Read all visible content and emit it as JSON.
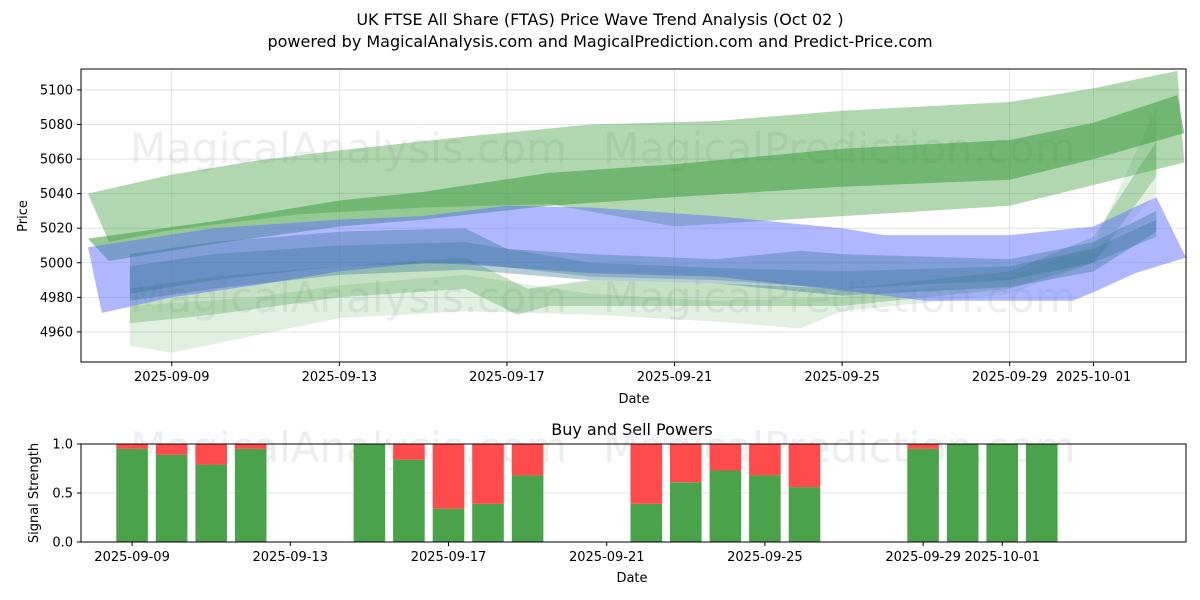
{
  "header": {
    "title": "UK FTSE All Share (FTAS) Price Wave Trend Analysis (Oct 02 )",
    "subtitle": "powered by MagicalAnalysis.com and MagicalPrediction.com and Predict-Price.com"
  },
  "watermarks": [
    "MagicalAnalysis.com",
    "MagicalPrediction.com"
  ],
  "colors": {
    "buy": "#4aa34a",
    "sell": "#ff4b4b",
    "green_band": "#3c9c3c",
    "blue_band": "#6070ff",
    "teal_band": "#2f6f8f",
    "grid": "#dddddd"
  },
  "chart_data": [
    {
      "type": "area",
      "title": "",
      "xlabel": "Date",
      "ylabel": "Price",
      "xlim": [
        "2025-09-06T20:00",
        "2025-10-03T05:00"
      ],
      "ylim": [
        4942.6,
        5112.1
      ],
      "yticks": [
        4960,
        4980,
        5000,
        5020,
        5040,
        5060,
        5080,
        5100
      ],
      "xticks": [
        "2025-09-09",
        "2025-09-13",
        "2025-09-17",
        "2025-09-21",
        "2025-09-25",
        "2025-09-29",
        "2025-10-01"
      ],
      "grid": true,
      "bands": [
        {
          "name": "upper-wave-outer",
          "color": "green",
          "opacity": 0.4,
          "upper": [
            [
              "2025-09-07",
              5040
            ],
            [
              "2025-09-09",
              5051
            ],
            [
              "2025-09-11",
              5059
            ],
            [
              "2025-09-13",
              5065
            ],
            [
              "2025-09-16",
              5073
            ],
            [
              "2025-09-19",
              5080
            ],
            [
              "2025-09-22",
              5082
            ],
            [
              "2025-09-25",
              5088
            ],
            [
              "2025-09-29",
              5093
            ],
            [
              "2025-10-01",
              5101
            ],
            [
              "2025-10-03",
              5111
            ]
          ],
          "lower": [
            [
              "2025-09-07T12:00",
              5012
            ],
            [
              "2025-09-09",
              5019
            ],
            [
              "2025-09-12",
              5028
            ],
            [
              "2025-09-15",
              5032
            ],
            [
              "2025-09-18",
              5034
            ],
            [
              "2025-09-21",
              5021
            ],
            [
              "2025-09-25",
              5027
            ],
            [
              "2025-09-29",
              5033
            ],
            [
              "2025-10-01",
              5045
            ],
            [
              "2025-10-03T04:00",
              5058
            ]
          ]
        },
        {
          "name": "upper-wave-core",
          "color": "green",
          "opacity": 0.55,
          "upper": [
            [
              "2025-09-07",
              5014
            ],
            [
              "2025-09-10",
              5024
            ],
            [
              "2025-09-13",
              5036
            ],
            [
              "2025-09-15",
              5041
            ],
            [
              "2025-09-18",
              5052
            ],
            [
              "2025-09-21",
              5057
            ],
            [
              "2025-09-25",
              5066
            ],
            [
              "2025-09-29",
              5071
            ],
            [
              "2025-10-01",
              5081
            ],
            [
              "2025-10-03",
              5097
            ]
          ],
          "lower": [
            [
              "2025-09-07T12:00",
              5001
            ],
            [
              "2025-09-10",
              5011
            ],
            [
              "2025-09-13",
              5021
            ],
            [
              "2025-09-15",
              5025
            ],
            [
              "2025-09-18",
              5033
            ],
            [
              "2025-09-21",
              5038
            ],
            [
              "2025-09-25",
              5044
            ],
            [
              "2025-09-29",
              5048
            ],
            [
              "2025-10-01",
              5060
            ],
            [
              "2025-10-03T04:00",
              5075
            ]
          ]
        },
        {
          "name": "lower-wave-faint",
          "color": "green",
          "opacity": 0.15,
          "upper": [
            [
              "2025-09-08",
              4975
            ],
            [
              "2025-09-11",
              4980
            ],
            [
              "2025-09-13",
              4987
            ],
            [
              "2025-09-16",
              4993
            ],
            [
              "2025-09-19",
              4982
            ],
            [
              "2025-09-22",
              4978
            ],
            [
              "2025-09-25",
              4980
            ],
            [
              "2025-09-29",
              4992
            ],
            [
              "2025-10-01",
              5010
            ],
            [
              "2025-10-02T12:00",
              5090
            ]
          ],
          "lower": [
            [
              "2025-09-08",
              4952
            ],
            [
              "2025-09-09",
              4948
            ],
            [
              "2025-09-11",
              4958
            ],
            [
              "2025-09-13",
              4968
            ],
            [
              "2025-09-16",
              4972
            ],
            [
              "2025-09-19",
              4970
            ],
            [
              "2025-09-22",
              4966
            ],
            [
              "2025-09-24",
              4962
            ],
            [
              "2025-09-25",
              4972
            ],
            [
              "2025-09-29",
              4982
            ],
            [
              "2025-10-01",
              5000
            ],
            [
              "2025-10-02T12:00",
              5040
            ]
          ]
        },
        {
          "name": "lower-wave-mid",
          "color": "green",
          "opacity": 0.3,
          "upper": [
            [
              "2025-09-08",
              4985
            ],
            [
              "2025-09-10",
              4992
            ],
            [
              "2025-09-13",
              4998
            ],
            [
              "2025-09-16",
              5003
            ],
            [
              "2025-09-17T12:00",
              4985
            ],
            [
              "2025-09-19",
              4990
            ],
            [
              "2025-09-22",
              4988
            ],
            [
              "2025-09-25",
              4985
            ],
            [
              "2025-09-29",
              4995
            ],
            [
              "2025-10-01",
              5015
            ],
            [
              "2025-10-02T12:00",
              5070
            ]
          ],
          "lower": [
            [
              "2025-09-08",
              4965
            ],
            [
              "2025-09-10",
              4970
            ],
            [
              "2025-09-13",
              4980
            ],
            [
              "2025-09-16",
              4985
            ],
            [
              "2025-09-17T06:00",
              4970
            ],
            [
              "2025-09-18",
              4975
            ],
            [
              "2025-09-22",
              4975
            ],
            [
              "2025-09-25",
              4975
            ],
            [
              "2025-09-29",
              4985
            ],
            [
              "2025-10-01",
              5000
            ],
            [
              "2025-10-02T12:00",
              5050
            ]
          ]
        },
        {
          "name": "blue-wave-outer",
          "color": "blue",
          "opacity": 0.5,
          "upper": [
            [
              "2025-09-07",
              5009
            ],
            [
              "2025-09-10",
              5020
            ],
            [
              "2025-09-13",
              5025
            ],
            [
              "2025-09-15",
              5027
            ],
            [
              "2025-09-17",
              5033
            ],
            [
              "2025-09-19",
              5032
            ],
            [
              "2025-09-22",
              5027
            ],
            [
              "2025-09-25",
              5020
            ],
            [
              "2025-09-26",
              5016
            ],
            [
              "2025-09-29",
              5016
            ],
            [
              "2025-10-01",
              5021
            ],
            [
              "2025-10-02T12:00",
              5038
            ],
            [
              "2025-10-03T05:00",
              5003
            ]
          ],
          "lower": [
            [
              "2025-09-07T08:00",
              4971
            ],
            [
              "2025-09-09",
              4980
            ],
            [
              "2025-09-11",
              4987
            ],
            [
              "2025-09-13",
              4995
            ],
            [
              "2025-09-15",
              5000
            ],
            [
              "2025-09-16",
              4999
            ],
            [
              "2025-09-19",
              4994
            ],
            [
              "2025-09-22",
              4992
            ],
            [
              "2025-09-25",
              4984
            ],
            [
              "2025-09-27",
              4978
            ],
            [
              "2025-09-30T12:00",
              4978
            ],
            [
              "2025-10-01",
              4983
            ],
            [
              "2025-10-02",
              4994
            ],
            [
              "2025-10-03T05:00",
              5003
            ]
          ]
        },
        {
          "name": "blue-wave-core",
          "color": "teal",
          "opacity": 0.35,
          "upper": [
            [
              "2025-09-08",
              5005
            ],
            [
              "2025-09-10",
              5012
            ],
            [
              "2025-09-13",
              5018
            ],
            [
              "2025-09-16",
              5020
            ],
            [
              "2025-09-17",
              5008
            ],
            [
              "2025-09-19",
              5005
            ],
            [
              "2025-09-22",
              5002
            ],
            [
              "2025-09-24",
              5007
            ],
            [
              "2025-09-25",
              5005
            ],
            [
              "2025-09-29",
              5002
            ],
            [
              "2025-10-01",
              5012
            ],
            [
              "2025-10-02T12:00",
              5030
            ]
          ],
          "lower": [
            [
              "2025-09-08",
              4978
            ],
            [
              "2025-09-10",
              4985
            ],
            [
              "2025-09-13",
              4993
            ],
            [
              "2025-09-16",
              4996
            ],
            [
              "2025-09-19",
              4990
            ],
            [
              "2025-09-22",
              4988
            ],
            [
              "2025-09-25",
              4981
            ],
            [
              "2025-09-29",
              4986
            ],
            [
              "2025-10-01",
              4995
            ],
            [
              "2025-10-02T12:00",
              5018
            ]
          ]
        },
        {
          "name": "blue-wave-inner",
          "color": "teal",
          "opacity": 0.3,
          "upper": [
            [
              "2025-09-08",
              4998
            ],
            [
              "2025-09-10",
              5005
            ],
            [
              "2025-09-13",
              5010
            ],
            [
              "2025-09-16",
              5012
            ],
            [
              "2025-09-19",
              5000
            ],
            [
              "2025-09-22",
              4997
            ],
            [
              "2025-09-25",
              4995
            ],
            [
              "2025-09-29",
              4998
            ],
            [
              "2025-10-01",
              5008
            ],
            [
              "2025-10-02T12:00",
              5025
            ]
          ],
          "lower": [
            [
              "2025-09-08",
              4982
            ],
            [
              "2025-09-10",
              4990
            ],
            [
              "2025-09-13",
              4998
            ],
            [
              "2025-09-16",
              5000
            ],
            [
              "2025-09-19",
              4992
            ],
            [
              "2025-09-22",
              4990
            ],
            [
              "2025-09-25",
              4985
            ],
            [
              "2025-09-29",
              4990
            ],
            [
              "2025-10-01",
              5000
            ],
            [
              "2025-10-02T12:00",
              5015
            ]
          ]
        }
      ]
    },
    {
      "type": "bar",
      "title": "Buy and Sell Powers",
      "xlabel": "Date",
      "ylabel": "Signal Strength",
      "ylim": [
        0,
        1
      ],
      "yticks": [
        "0.0",
        "0.5",
        "1.0"
      ],
      "xlim": [
        "2025-09-07T17:00",
        "2025-10-05T15:30"
      ],
      "xticks": [
        "2025-09-09",
        "2025-09-13",
        "2025-09-17",
        "2025-09-21",
        "2025-09-25",
        "2025-09-29",
        "2025-10-01"
      ],
      "grid": true,
      "series": [
        {
          "name": "Buy",
          "color": "#4aa34a"
        },
        {
          "name": "Sell",
          "color": "#ff4b4b"
        }
      ],
      "categories": [
        "2025-09-09",
        "2025-09-10",
        "2025-09-11",
        "2025-09-12",
        "2025-09-15",
        "2025-09-16",
        "2025-09-17",
        "2025-09-18",
        "2025-09-19",
        "2025-09-22",
        "2025-09-23",
        "2025-09-24",
        "2025-09-25",
        "2025-09-26",
        "2025-09-29",
        "2025-09-30",
        "2025-10-01",
        "2025-10-02"
      ],
      "buy": [
        0.95,
        0.89,
        0.79,
        0.95,
        1.0,
        0.84,
        0.34,
        0.39,
        0.68,
        0.39,
        0.61,
        0.73,
        0.68,
        0.56,
        0.95,
        1.0,
        1.0,
        1.0
      ],
      "sell": [
        0.05,
        0.11,
        0.21,
        0.05,
        0.0,
        0.16,
        0.66,
        0.61,
        0.32,
        0.61,
        0.39,
        0.27,
        0.32,
        0.44,
        0.05,
        0.0,
        0.0,
        0.0
      ]
    }
  ]
}
